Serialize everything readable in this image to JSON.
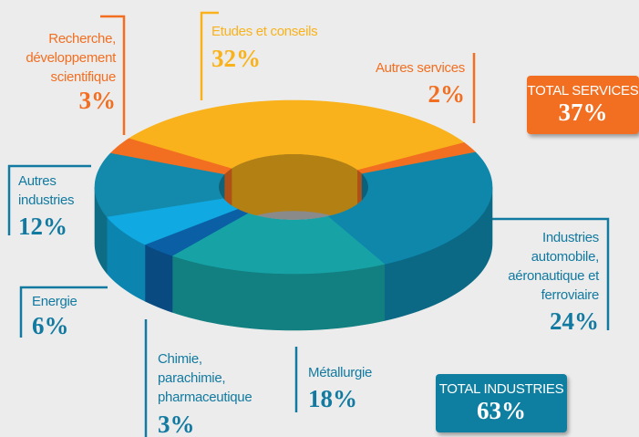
{
  "chart_data": {
    "type": "pie",
    "donut": true,
    "categories": [
      "Etudes et conseils",
      "Autres services",
      "Industries automobile, aéronautique et ferroviaire",
      "Métallurgie",
      "Chimie, parachimie, pharmaceutique",
      "Energie",
      "Autres industries",
      "Recherche, développement scientifique"
    ],
    "values": [
      32,
      2,
      24,
      18,
      3,
      6,
      12,
      3
    ],
    "value_labels": [
      "32%",
      "2%",
      "24%",
      "18%",
      "3%",
      "6%",
      "12%",
      "3%"
    ],
    "colors": [
      "#f9b21b",
      "#f26f21",
      "#0e87ab",
      "#17a3a6",
      "#0b5fa5",
      "#10a9e2",
      "#138aab",
      "#f26f21"
    ],
    "totals": {
      "labels": [
        "TOTAL SERVICES",
        "TOTAL INDUSTRIES"
      ],
      "values": [
        37,
        63
      ],
      "value_labels": [
        "37%",
        "63%"
      ],
      "colors": [
        "#f26f21",
        "#0e7fa0"
      ]
    }
  }
}
